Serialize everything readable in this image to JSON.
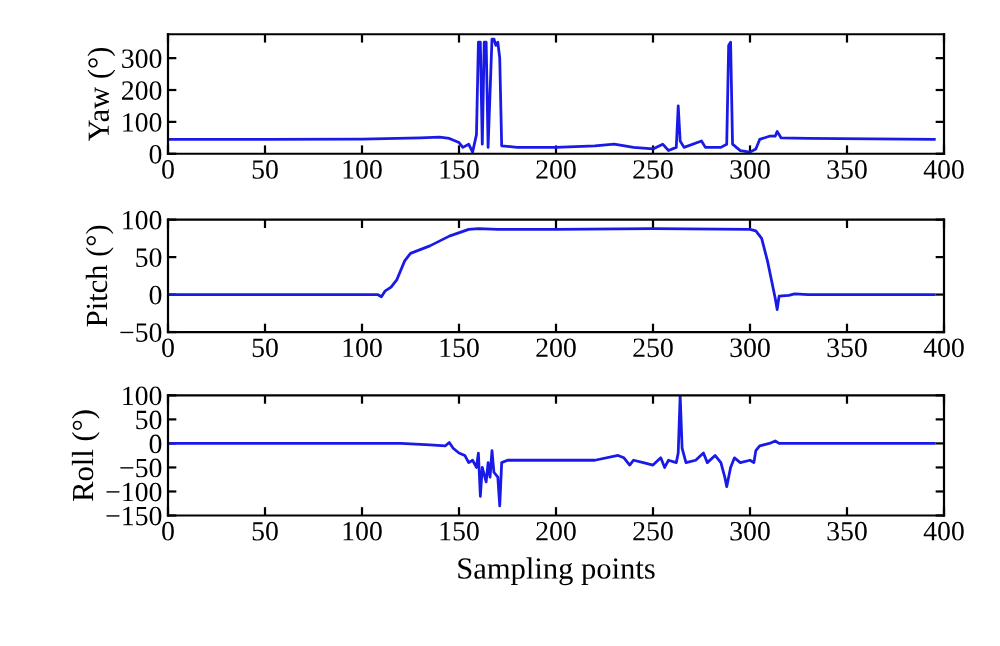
{
  "chart_data": [
    {
      "type": "line",
      "ylabel": "Yaw (°)",
      "xlim": [
        0,
        400
      ],
      "xticks": [
        0,
        50,
        100,
        150,
        200,
        250,
        300,
        350,
        400
      ],
      "ylim": [
        0,
        375
      ],
      "yticks": [
        0,
        100,
        200,
        300
      ],
      "grid": false,
      "legend": false,
      "series": [
        {
          "color": "#1a1ae6",
          "x": [
            0,
            50,
            100,
            130,
            140,
            145,
            150,
            152,
            155,
            157,
            159,
            160,
            161,
            162,
            163,
            164,
            165,
            167,
            168,
            169,
            170,
            171,
            172,
            180,
            200,
            220,
            230,
            240,
            250,
            255,
            258,
            262,
            263,
            264,
            266,
            275,
            277,
            285,
            288,
            289,
            290,
            291,
            295,
            300,
            303,
            305,
            310,
            313,
            314,
            316,
            330,
            395
          ],
          "values": [
            45,
            45,
            46,
            50,
            52,
            48,
            35,
            20,
            30,
            5,
            60,
            350,
            350,
            30,
            350,
            350,
            20,
            360,
            360,
            340,
            350,
            300,
            25,
            20,
            20,
            25,
            30,
            20,
            15,
            30,
            10,
            20,
            150,
            40,
            20,
            40,
            20,
            20,
            30,
            340,
            350,
            30,
            10,
            5,
            15,
            45,
            55,
            55,
            70,
            50,
            48,
            45
          ]
        }
      ]
    },
    {
      "type": "line",
      "ylabel": "Pitch (°)",
      "xlim": [
        0,
        400
      ],
      "xticks": [
        0,
        50,
        100,
        150,
        200,
        250,
        300,
        350,
        400
      ],
      "ylim": [
        -50,
        100
      ],
      "yticks": [
        -50,
        0,
        50,
        100
      ],
      "grid": false,
      "legend": false,
      "series": [
        {
          "color": "#1a1ae6",
          "x": [
            0,
            108,
            110,
            112,
            115,
            118,
            122,
            125,
            135,
            145,
            155,
            160,
            170,
            200,
            250,
            300,
            303,
            306,
            309,
            311,
            313,
            314,
            315,
            320,
            323,
            330,
            395
          ],
          "values": [
            0,
            0,
            -3,
            5,
            10,
            20,
            45,
            55,
            65,
            78,
            87,
            88,
            87,
            87,
            88,
            87,
            85,
            75,
            45,
            20,
            -5,
            -20,
            -2,
            -1,
            1,
            0,
            0
          ]
        }
      ]
    },
    {
      "type": "line",
      "ylabel": "Roll (°)",
      "xlabel": "Sampling points",
      "xlim": [
        0,
        400
      ],
      "xticks": [
        0,
        50,
        100,
        150,
        200,
        250,
        300,
        350,
        400
      ],
      "ylim": [
        -150,
        100
      ],
      "yticks": [
        -150,
        -100,
        -50,
        0,
        50,
        100
      ],
      "grid": false,
      "legend": false,
      "series": [
        {
          "color": "#1a1ae6",
          "x": [
            0,
            120,
            135,
            143,
            145,
            147,
            150,
            153,
            155,
            157,
            159,
            160,
            161,
            162,
            164,
            165,
            166,
            167,
            168,
            170,
            171,
            172,
            175,
            200,
            220,
            232,
            235,
            238,
            240,
            245,
            250,
            254,
            256,
            258,
            262,
            263,
            264,
            265,
            267,
            272,
            276,
            278,
            282,
            285,
            287,
            288,
            290,
            292,
            295,
            300,
            302,
            303,
            305,
            310,
            313,
            315,
            395
          ],
          "values": [
            0,
            0,
            -3,
            -5,
            2,
            -10,
            -20,
            -25,
            -40,
            -35,
            -50,
            -20,
            -110,
            -50,
            -80,
            -40,
            -70,
            -15,
            -60,
            -70,
            -130,
            -40,
            -35,
            -35,
            -35,
            -25,
            -30,
            -45,
            -35,
            -40,
            -45,
            -30,
            -50,
            -35,
            -40,
            -20,
            100,
            -10,
            -40,
            -35,
            -20,
            -40,
            -25,
            -40,
            -70,
            -90,
            -50,
            -30,
            -40,
            -35,
            -40,
            -15,
            -5,
            0,
            5,
            0,
            0
          ]
        }
      ]
    }
  ]
}
